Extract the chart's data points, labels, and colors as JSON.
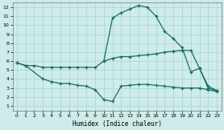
{
  "xlabel": "Humidex (Indice chaleur)",
  "bg_color": "#ceecea",
  "line_color": "#1a6b6b",
  "grid_color": "#aed8d4",
  "xlim": [
    -0.5,
    23.5
  ],
  "ylim": [
    0.5,
    12.5
  ],
  "xticks": [
    0,
    1,
    2,
    3,
    4,
    5,
    6,
    7,
    8,
    9,
    10,
    11,
    12,
    13,
    14,
    15,
    16,
    17,
    18,
    19,
    20,
    21,
    22,
    23
  ],
  "yticks": [
    1,
    2,
    3,
    4,
    5,
    6,
    7,
    8,
    9,
    10,
    11,
    12
  ],
  "line_main_x": [
    10,
    11,
    12,
    13,
    14,
    15,
    16,
    17,
    18,
    19,
    20,
    21,
    22,
    23
  ],
  "line_main_y": [
    6.0,
    10.8,
    11.4,
    11.8,
    12.2,
    12.0,
    11.0,
    9.3,
    8.5,
    7.5,
    4.8,
    5.2,
    3.0,
    2.7
  ],
  "line_upper_x": [
    0,
    1,
    2,
    3,
    4,
    5,
    6,
    7,
    8,
    9,
    10,
    11,
    12,
    13,
    14,
    15,
    16,
    17,
    18,
    19,
    20,
    21,
    22,
    23
  ],
  "line_upper_y": [
    5.8,
    5.5,
    5.5,
    5.3,
    5.3,
    5.3,
    5.3,
    5.3,
    5.3,
    5.3,
    6.0,
    6.3,
    6.5,
    6.5,
    6.6,
    6.7,
    6.8,
    7.0,
    7.1,
    7.2,
    7.2,
    5.2,
    3.2,
    2.7
  ],
  "line_lower_x": [
    0,
    1,
    3,
    4,
    5,
    6,
    7,
    8,
    9,
    10,
    11,
    12,
    13,
    14,
    15,
    16,
    17,
    18,
    19,
    20,
    21,
    22,
    23
  ],
  "line_lower_y": [
    5.8,
    5.5,
    4.0,
    3.7,
    3.5,
    3.5,
    3.3,
    3.2,
    2.8,
    1.7,
    1.5,
    3.2,
    3.3,
    3.4,
    3.4,
    3.3,
    3.2,
    3.1,
    3.0,
    3.0,
    3.0,
    2.8,
    2.6
  ]
}
